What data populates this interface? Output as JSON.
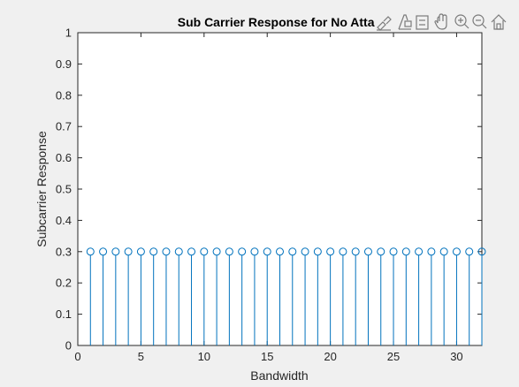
{
  "chart_data": {
    "type": "stem",
    "title": "Sub Carrier Response for No Attac",
    "xlabel": "Bandwidth",
    "ylabel": "Subcarrier Response",
    "xlim": [
      0,
      32
    ],
    "ylim": [
      0,
      1
    ],
    "x_ticks": [
      "0",
      "5",
      "10",
      "15",
      "20",
      "25",
      "30"
    ],
    "y_ticks": [
      "0",
      "0.1",
      "0.2",
      "0.3",
      "0.4",
      "0.5",
      "0.6",
      "0.7",
      "0.8",
      "0.9",
      "1"
    ],
    "x": [
      1,
      2,
      3,
      4,
      5,
      6,
      7,
      8,
      9,
      10,
      11,
      12,
      13,
      14,
      15,
      16,
      17,
      18,
      19,
      20,
      21,
      22,
      23,
      24,
      25,
      26,
      27,
      28,
      29,
      30,
      31,
      32
    ],
    "y": [
      0.3,
      0.3,
      0.3,
      0.3,
      0.3,
      0.3,
      0.3,
      0.3,
      0.3,
      0.3,
      0.3,
      0.3,
      0.3,
      0.3,
      0.3,
      0.3,
      0.3,
      0.3,
      0.3,
      0.3,
      0.3,
      0.3,
      0.3,
      0.3,
      0.3,
      0.3,
      0.3,
      0.3,
      0.3,
      0.3,
      0.3,
      0.3
    ],
    "series_color": "#0072bd",
    "grid": false,
    "legend": "none"
  },
  "toolbar": {
    "tools": [
      "brush-icon",
      "data-tip-icon",
      "legend-icon",
      "pan-icon",
      "zoom-in-icon",
      "zoom-out-icon",
      "home-icon"
    ]
  }
}
